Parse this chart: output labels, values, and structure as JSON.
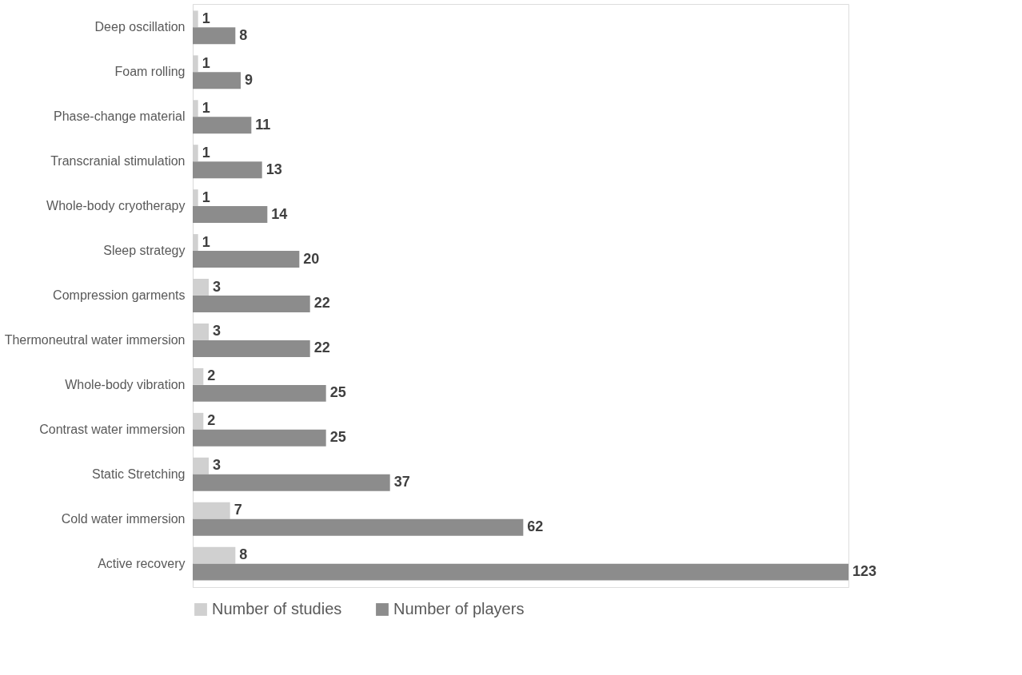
{
  "chart_data": {
    "type": "bar",
    "orientation": "horizontal",
    "categories": [
      "Deep oscillation",
      "Foam rolling",
      "Phase-change material",
      "Transcranial stimulation",
      "Whole-body cryotherapy",
      "Sleep strategy",
      "Compression garments",
      "Thermoneutral water immersion",
      "Whole-body vibration",
      "Contrast water immersion",
      "Static Stretching",
      "Cold water immersion",
      "Active recovery"
    ],
    "series": [
      {
        "name": "Number of studies",
        "color": "#d0d0d0",
        "values": [
          1,
          1,
          1,
          1,
          1,
          1,
          3,
          3,
          2,
          2,
          3,
          7,
          8
        ]
      },
      {
        "name": "Number of players",
        "color": "#8c8c8c",
        "values": [
          8,
          9,
          11,
          13,
          14,
          20,
          22,
          22,
          25,
          25,
          37,
          62,
          123
        ]
      }
    ],
    "data_labels": true,
    "legend": "bottom"
  }
}
